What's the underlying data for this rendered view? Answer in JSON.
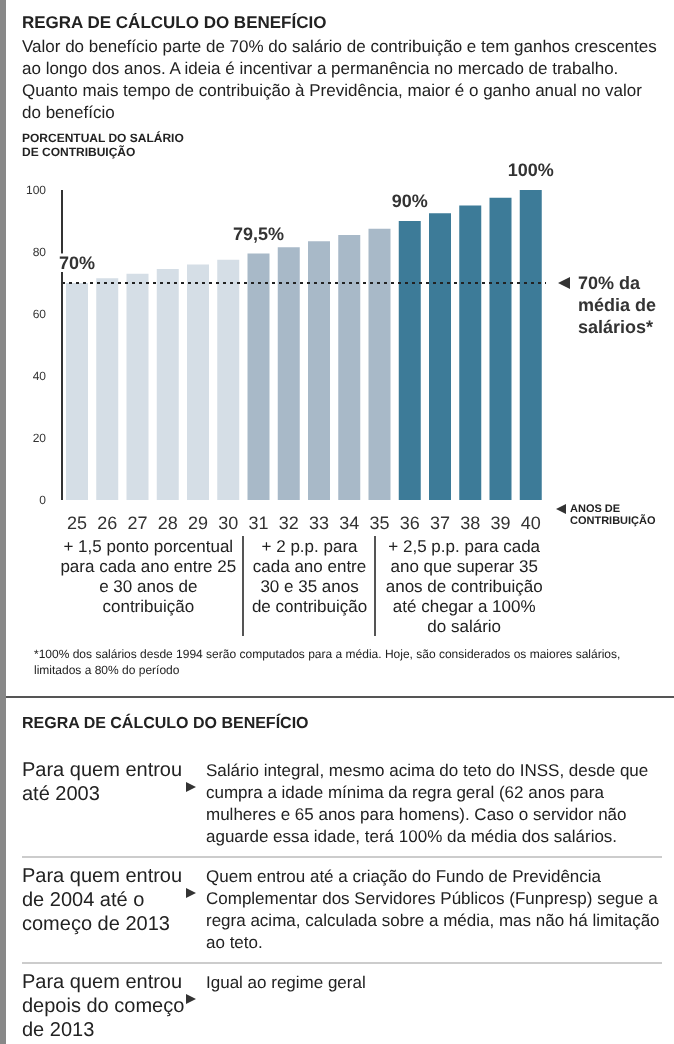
{
  "chart_data": {
    "type": "bar",
    "title": "REGRA DE CÁLCULO DO BENEFÍCIO",
    "subtitle": "Valor do benefício parte de 70% do salário de contribuição e tem ganhos crescentes ao longo dos anos. A ideia é incentivar a permanência no mercado de trabalho. Quanto mais tempo de contribuição à Previdência, maior é o ganho anual no valor do benefício",
    "ylabel": "PORCENTUAL DO SALÁRIO DE CONTRIBUIÇÃO",
    "xlabel": "ANOS DE CONTRIBUIÇÃO",
    "categories": [
      "25",
      "26",
      "27",
      "28",
      "29",
      "30",
      "31",
      "32",
      "33",
      "34",
      "35",
      "36",
      "37",
      "38",
      "39",
      "40"
    ],
    "values": [
      70,
      71.5,
      73,
      74.5,
      76,
      77.5,
      79.5,
      81.5,
      83.5,
      85.5,
      87.5,
      90,
      92.5,
      95,
      97.5,
      100
    ],
    "colors": [
      "#d5dee6",
      "#d5dee6",
      "#d5dee6",
      "#d5dee6",
      "#d5dee6",
      "#d5dee6",
      "#a8b9c8",
      "#a8b9c8",
      "#a8b9c8",
      "#a8b9c8",
      "#a8b9c8",
      "#3d7b98",
      "#3d7b98",
      "#3d7b98",
      "#3d7b98",
      "#3d7b98"
    ],
    "value_labels": [
      "70%",
      null,
      null,
      null,
      null,
      null,
      "79,5%",
      null,
      null,
      null,
      null,
      "90%",
      null,
      null,
      null,
      "100%"
    ],
    "ylim": [
      0,
      100
    ],
    "yticks": [
      0,
      20,
      40,
      60,
      80,
      100
    ],
    "grid": false,
    "legend": false,
    "ref_lines": [
      {
        "axis": "y",
        "value": 70,
        "label": "70% da média de salários*",
        "color": "#222222",
        "line_style": "dotted"
      }
    ],
    "annotations": [
      "+ 1,5 ponto porcentual para cada ano entre 25 e 30 anos de contribuição",
      "+ 2 p.p. para cada ano entre 30 e 35 anos de contribuição",
      "+ 2,5 p.p. para cada ano que superar 35 anos de contribuição até chegar a 100% do salário",
      "*100% dos salários desde 1994 serão computados para a média. Hoje, são considerados os maiores salários, limitados a 80% do período",
      "REGRA DE CÁLCULO DO BENEFÍCIO",
      "Para quem entrou até 2003",
      "Salário integral, mesmo acima do teto do INSS, desde que cumpra a idade mínima da regra geral (62 anos para mulheres e 65 anos para homens). Caso o servidor não aguarde essa idade, terá 100% da média dos salários.",
      "Para quem entrou de 2004 até o começo de 2013",
      "Quem entrou até a criação do Fundo de Previdência Complementar dos Servidores Públicos (Funpresp) segue a regra acima, calculada sobre a média, mas não há limitação ao teto.",
      "Para quem entrou depois do começo de 2013",
      "Igual ao regime geral"
    ]
  }
}
